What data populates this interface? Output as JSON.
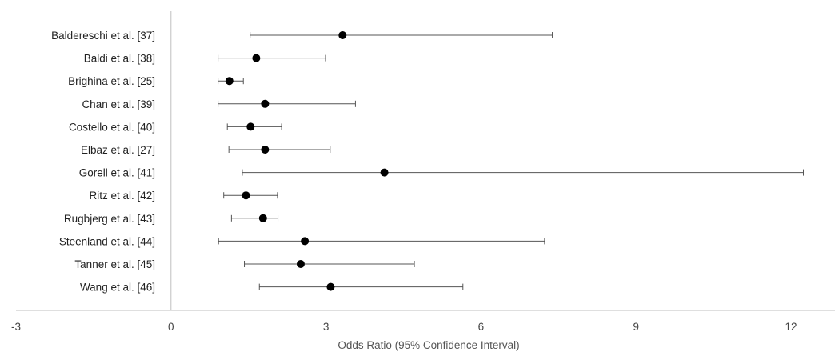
{
  "chart_data": {
    "type": "forest",
    "xlabel": "Odds Ratio (95% Confidence Interval)",
    "xlim": [
      -3,
      13.4
    ],
    "xticks": [
      -3,
      0,
      3,
      6,
      9,
      12
    ],
    "grid": false,
    "legend": "none",
    "colors": {
      "point": "#000000",
      "whisker": "#555555",
      "axis": "#bfbfbf"
    },
    "studies": [
      {
        "label": "Baldereschi et al. [37]",
        "or": 3.32,
        "ci_low": 1.53,
        "ci_high": 7.38
      },
      {
        "label": "Baldi et al. [38]",
        "or": 1.65,
        "ci_low": 0.91,
        "ci_high": 2.99
      },
      {
        "label": "Brighina et al. [25]",
        "or": 1.13,
        "ci_low": 0.91,
        "ci_high": 1.4
      },
      {
        "label": "Chan et al. [39]",
        "or": 1.82,
        "ci_low": 0.91,
        "ci_high": 3.57
      },
      {
        "label": "Costello et al. [40]",
        "or": 1.54,
        "ci_low": 1.09,
        "ci_high": 2.14
      },
      {
        "label": "Elbaz et al. [27]",
        "or": 1.82,
        "ci_low": 1.12,
        "ci_high": 3.08
      },
      {
        "label": "Gorell et al. [41]",
        "or": 4.13,
        "ci_low": 1.38,
        "ci_high": 12.24
      },
      {
        "label": "Ritz et al. [42]",
        "or": 1.45,
        "ci_low": 1.02,
        "ci_high": 2.06
      },
      {
        "label": "Rugbjerg et al. [43]",
        "or": 1.78,
        "ci_low": 1.17,
        "ci_high": 2.07
      },
      {
        "label": "Steenland et al. [44]",
        "or": 2.59,
        "ci_low": 0.92,
        "ci_high": 7.23
      },
      {
        "label": "Tanner et al. [45]",
        "or": 2.51,
        "ci_low": 1.42,
        "ci_high": 4.71
      },
      {
        "label": "Wang et al. [46]",
        "or": 3.09,
        "ci_low": 1.71,
        "ci_high": 5.65
      }
    ]
  }
}
